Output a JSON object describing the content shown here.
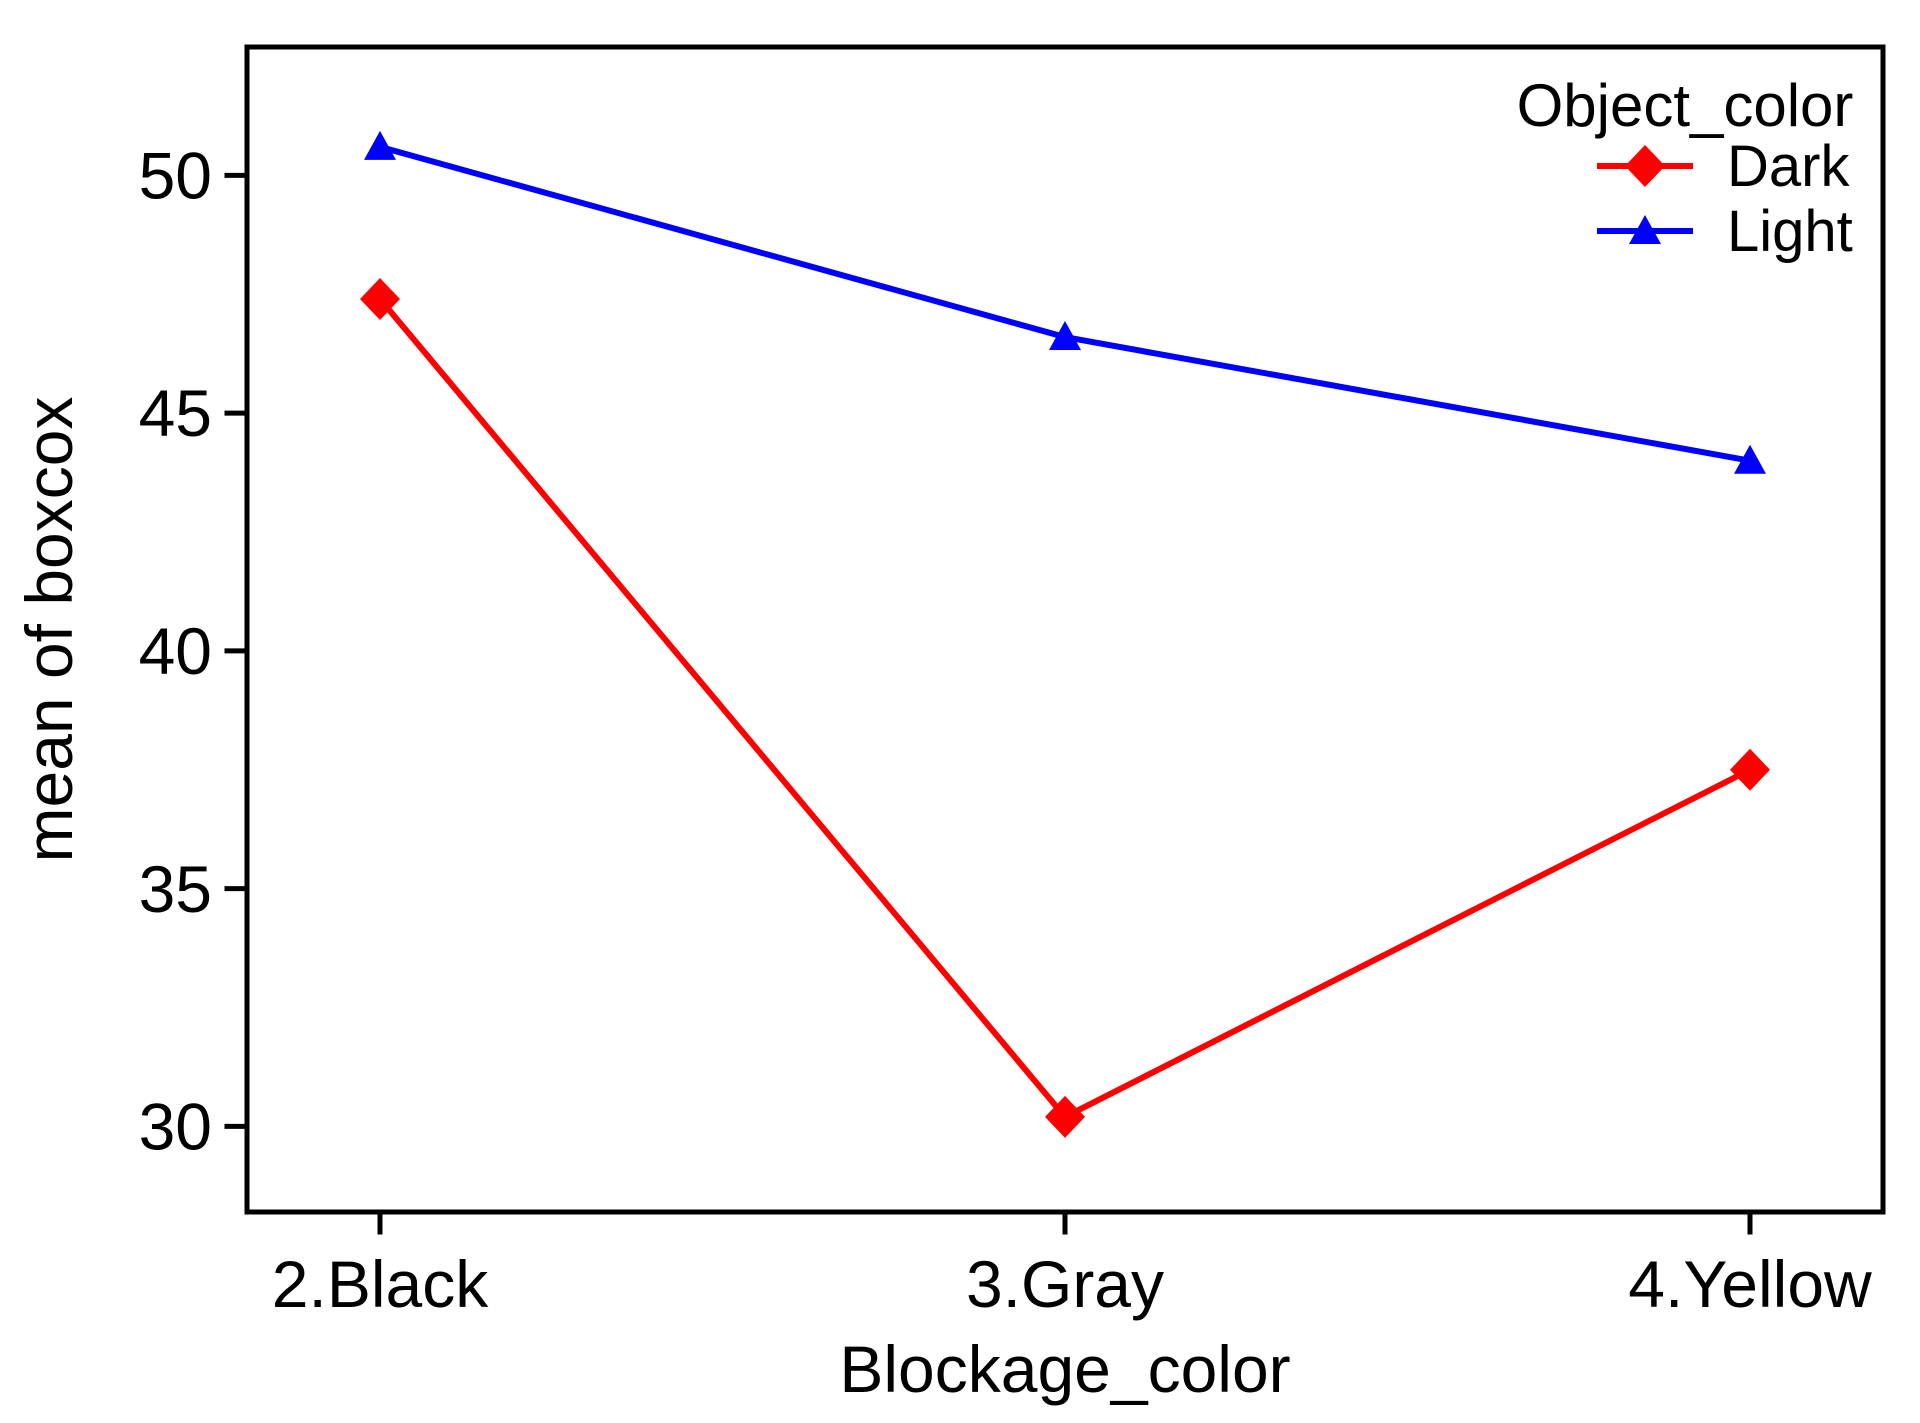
{
  "figure": {
    "background": "#ffffff",
    "axis_color": "#000000"
  },
  "chart_data": {
    "type": "line",
    "title": "",
    "xlabel": "Blockage_color",
    "ylabel": "mean of boxcox",
    "categories": [
      "2.Black",
      "3.Gray",
      "4.Yellow"
    ],
    "series": [
      {
        "name": "Dark",
        "color": "#ff0000",
        "marker": "diamond",
        "values": [
          47.4,
          30.2,
          37.5
        ]
      },
      {
        "name": "Light",
        "color": "#0000ff",
        "marker": "triangle",
        "values": [
          50.6,
          46.6,
          44.0
        ]
      }
    ],
    "legend": {
      "title": "Object_color",
      "position": "upper right"
    },
    "yticks": [
      30,
      35,
      40,
      45,
      50
    ],
    "ylim": [
      28.2,
      52.7
    ],
    "grid": false
  }
}
